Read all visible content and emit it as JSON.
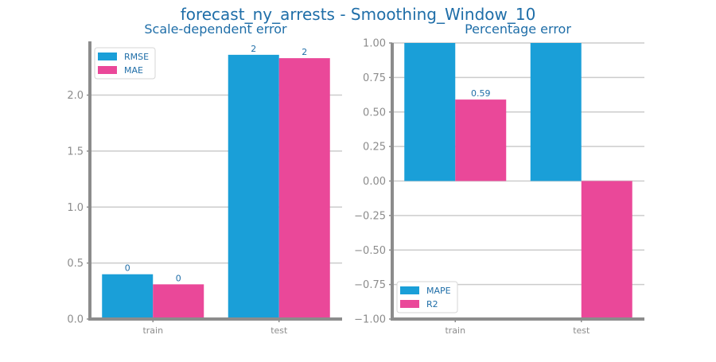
{
  "title": "forecast_ny_arrests - Smoothing_Window_10",
  "colors": {
    "series1": "#1a9fd8",
    "series2": "#ea4899",
    "text": "#1f6ea8",
    "axis": "#8c8c8c",
    "grid": "#cccccc"
  },
  "chart_data": [
    {
      "type": "bar",
      "title": "Scale-dependent error",
      "categories": [
        "train",
        "test"
      ],
      "series": [
        {
          "name": "RMSE",
          "values": [
            0.4,
            2.36
          ],
          "labels": [
            "0",
            "2"
          ]
        },
        {
          "name": "MAE",
          "values": [
            0.31,
            2.33
          ],
          "labels": [
            "0",
            "2"
          ]
        }
      ],
      "ylim": [
        0,
        2.5
      ],
      "yticks": [
        0.0,
        0.5,
        1.0,
        1.5,
        2.0
      ],
      "ytick_labels": [
        "0.0",
        "0.5",
        "1.0",
        "1.5",
        "2.0"
      ],
      "grid": true,
      "legend": "top-left"
    },
    {
      "type": "bar",
      "title": "Percentage error",
      "categories": [
        "train",
        "test"
      ],
      "series": [
        {
          "name": "MAPE",
          "values": [
            1.0,
            1.0
          ],
          "labels": [
            "",
            ""
          ]
        },
        {
          "name": "R2",
          "values": [
            0.59,
            -1.0
          ],
          "labels": [
            "0.59",
            ""
          ]
        }
      ],
      "ylim": [
        -1.0,
        1.0
      ],
      "yticks": [
        -1.0,
        -0.75,
        -0.5,
        -0.25,
        0.0,
        0.25,
        0.5,
        0.75,
        1.0
      ],
      "ytick_labels": [
        "−1.00",
        "−0.75",
        "−0.50",
        "−0.25",
        "0.00",
        "0.25",
        "0.50",
        "0.75",
        "1.00"
      ],
      "grid": true,
      "legend": "bottom-left"
    }
  ]
}
